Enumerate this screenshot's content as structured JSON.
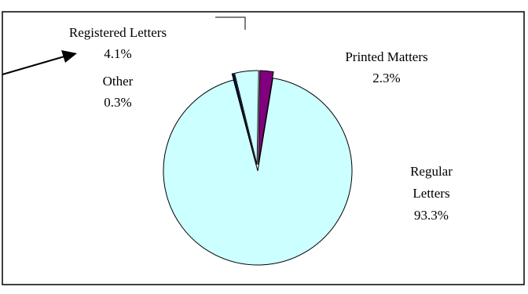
{
  "chart_data": {
    "type": "pie",
    "title": "",
    "categories": [
      "Regular Letters",
      "Printed Matters",
      "Registered Letters",
      "Other"
    ],
    "values": [
      93.3,
      2.3,
      4.1,
      0.3
    ],
    "slices": [
      {
        "name": "Regular Letters",
        "value": 93.3,
        "label_lines": [
          "Regular",
          "Letters",
          "93.3%"
        ],
        "color": "#ccffff",
        "exploded": false
      },
      {
        "name": "Printed Matters",
        "value": 2.3,
        "label_lines": [
          "Printed Matters",
          "2.3%"
        ],
        "color": "#800080",
        "exploded": true
      },
      {
        "name": "Registered Letters",
        "value": 4.1,
        "label_lines": [
          "Registered Letters",
          "4.1%"
        ],
        "color": "#ccffff",
        "exploded": true
      },
      {
        "name": "Other",
        "value": 0.3,
        "label_lines": [
          "Other",
          "0.3%"
        ],
        "color": "#000080",
        "exploded": true
      }
    ],
    "legend": "none",
    "units": "%"
  }
}
